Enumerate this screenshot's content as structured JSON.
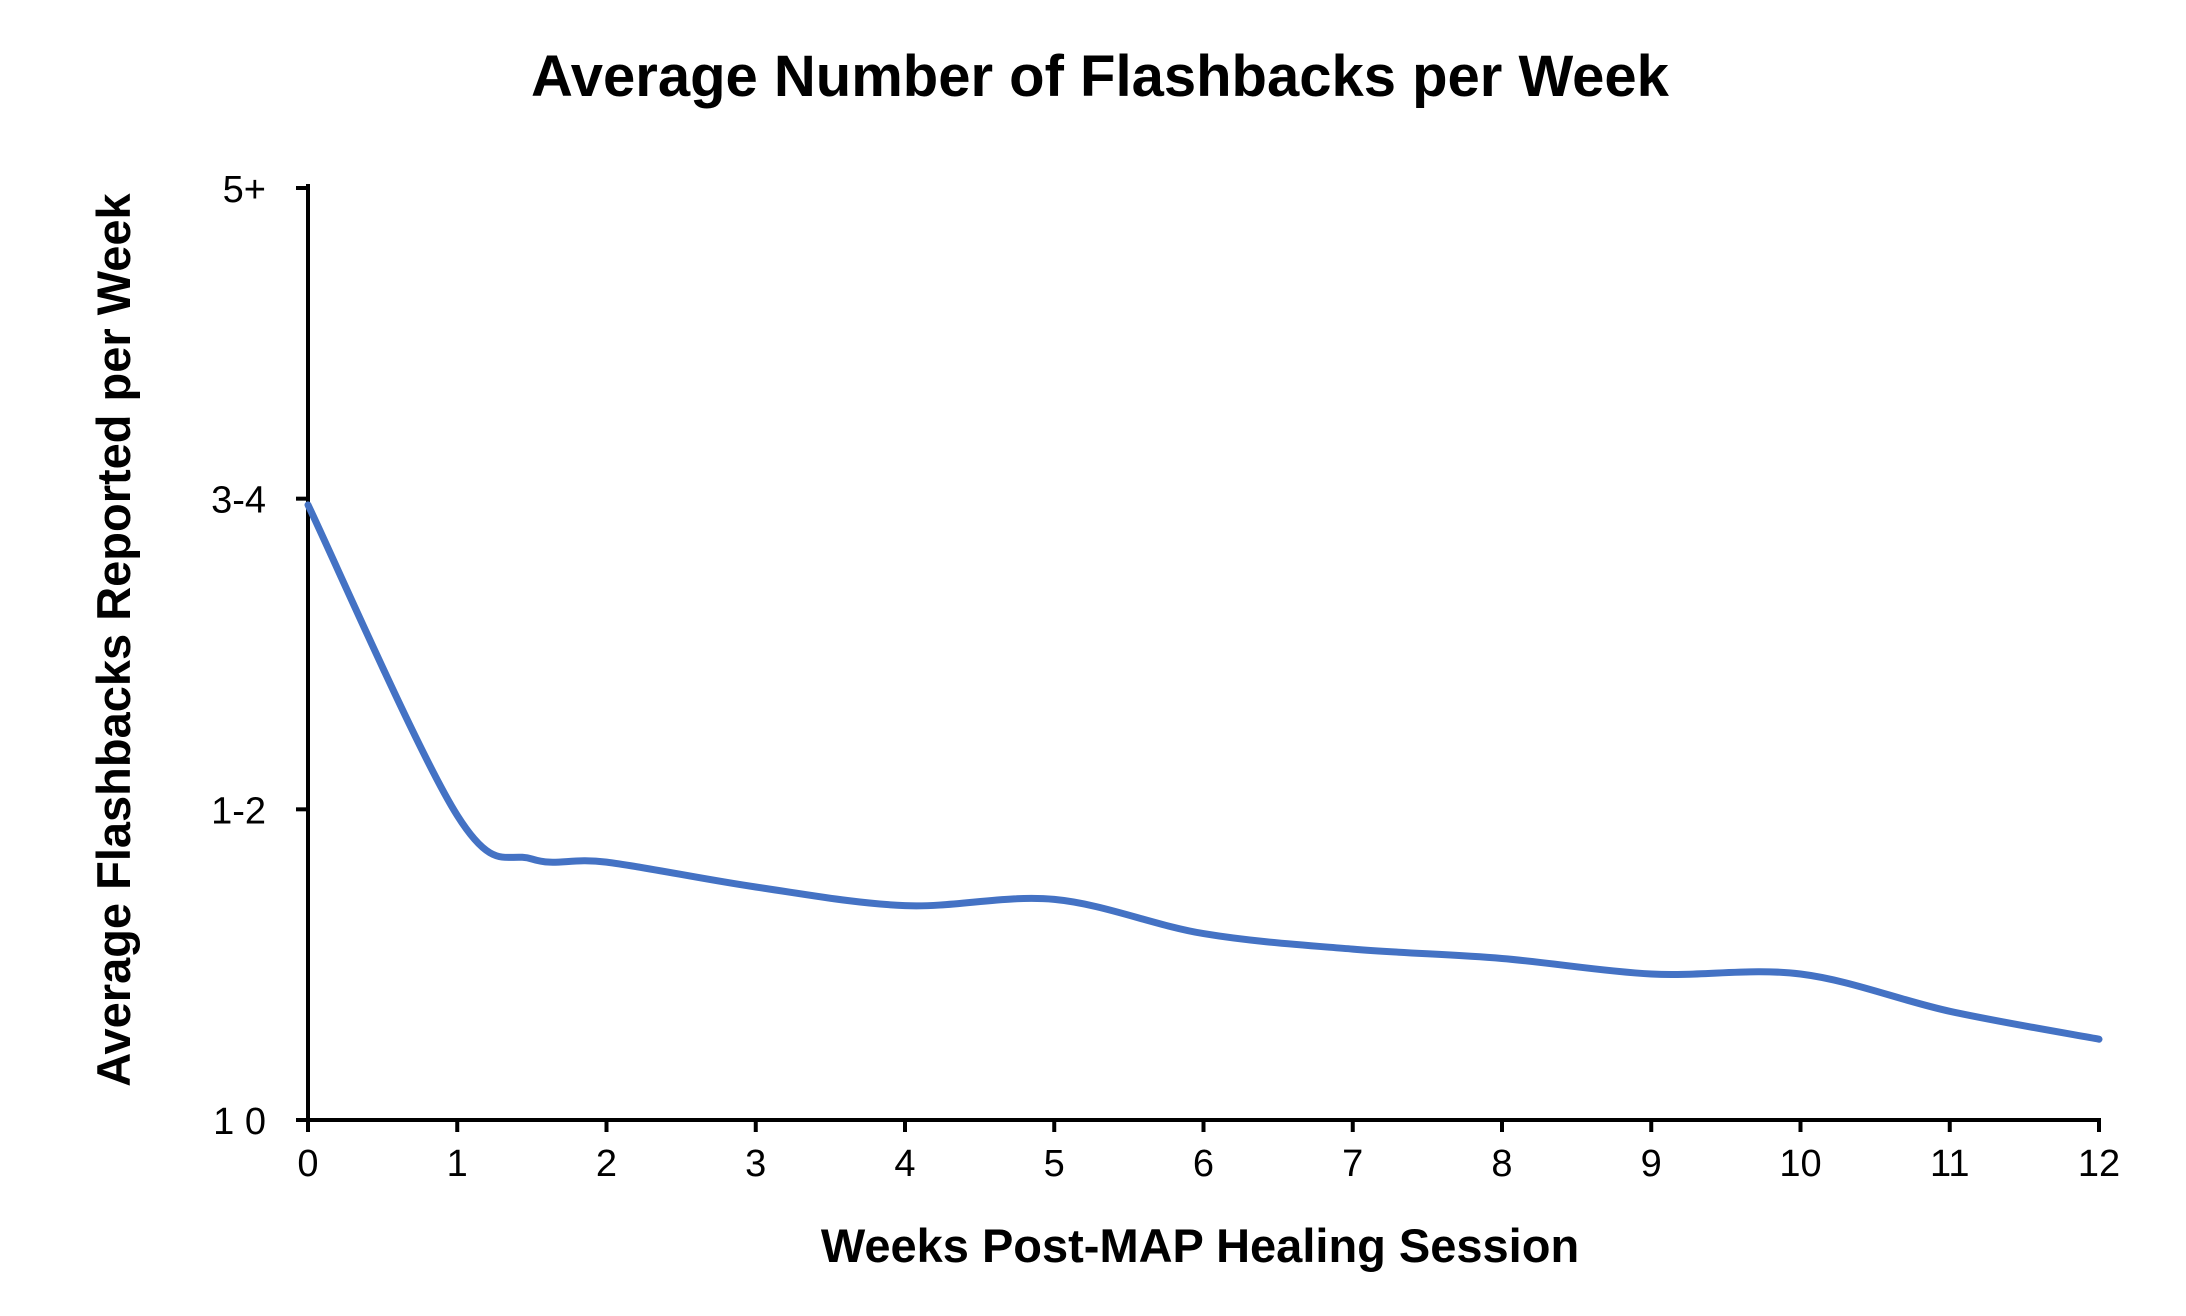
{
  "chart_data": {
    "type": "line",
    "title": "Average Number of Flashbacks per Week",
    "xlabel": "Weeks Post-MAP Healing Session",
    "ylabel": "Average Flashbacks Reported per Week",
    "x_ticks": [
      "0",
      "1",
      "2",
      "3",
      "4",
      "5",
      "6",
      "7",
      "8",
      "9",
      "10",
      "11",
      "12"
    ],
    "y_ticks": [
      {
        "label": "1 0",
        "value": 0
      },
      {
        "label": "1-2",
        "value": 1
      },
      {
        "label": "3-4",
        "value": 2
      },
      {
        "label": "5+",
        "value": 3
      }
    ],
    "xlim": [
      0,
      12
    ],
    "ylim": [
      0,
      3
    ],
    "grid": false,
    "series": [
      {
        "color": "#4472C4",
        "x": [
          0,
          1,
          1.5,
          2,
          3,
          4,
          5,
          6,
          7,
          8,
          9,
          10,
          11,
          12
        ],
        "y": [
          1.98,
          0.98,
          0.84,
          0.83,
          0.75,
          0.69,
          0.71,
          0.6,
          0.55,
          0.52,
          0.47,
          0.47,
          0.35,
          0.26
        ]
      }
    ]
  }
}
